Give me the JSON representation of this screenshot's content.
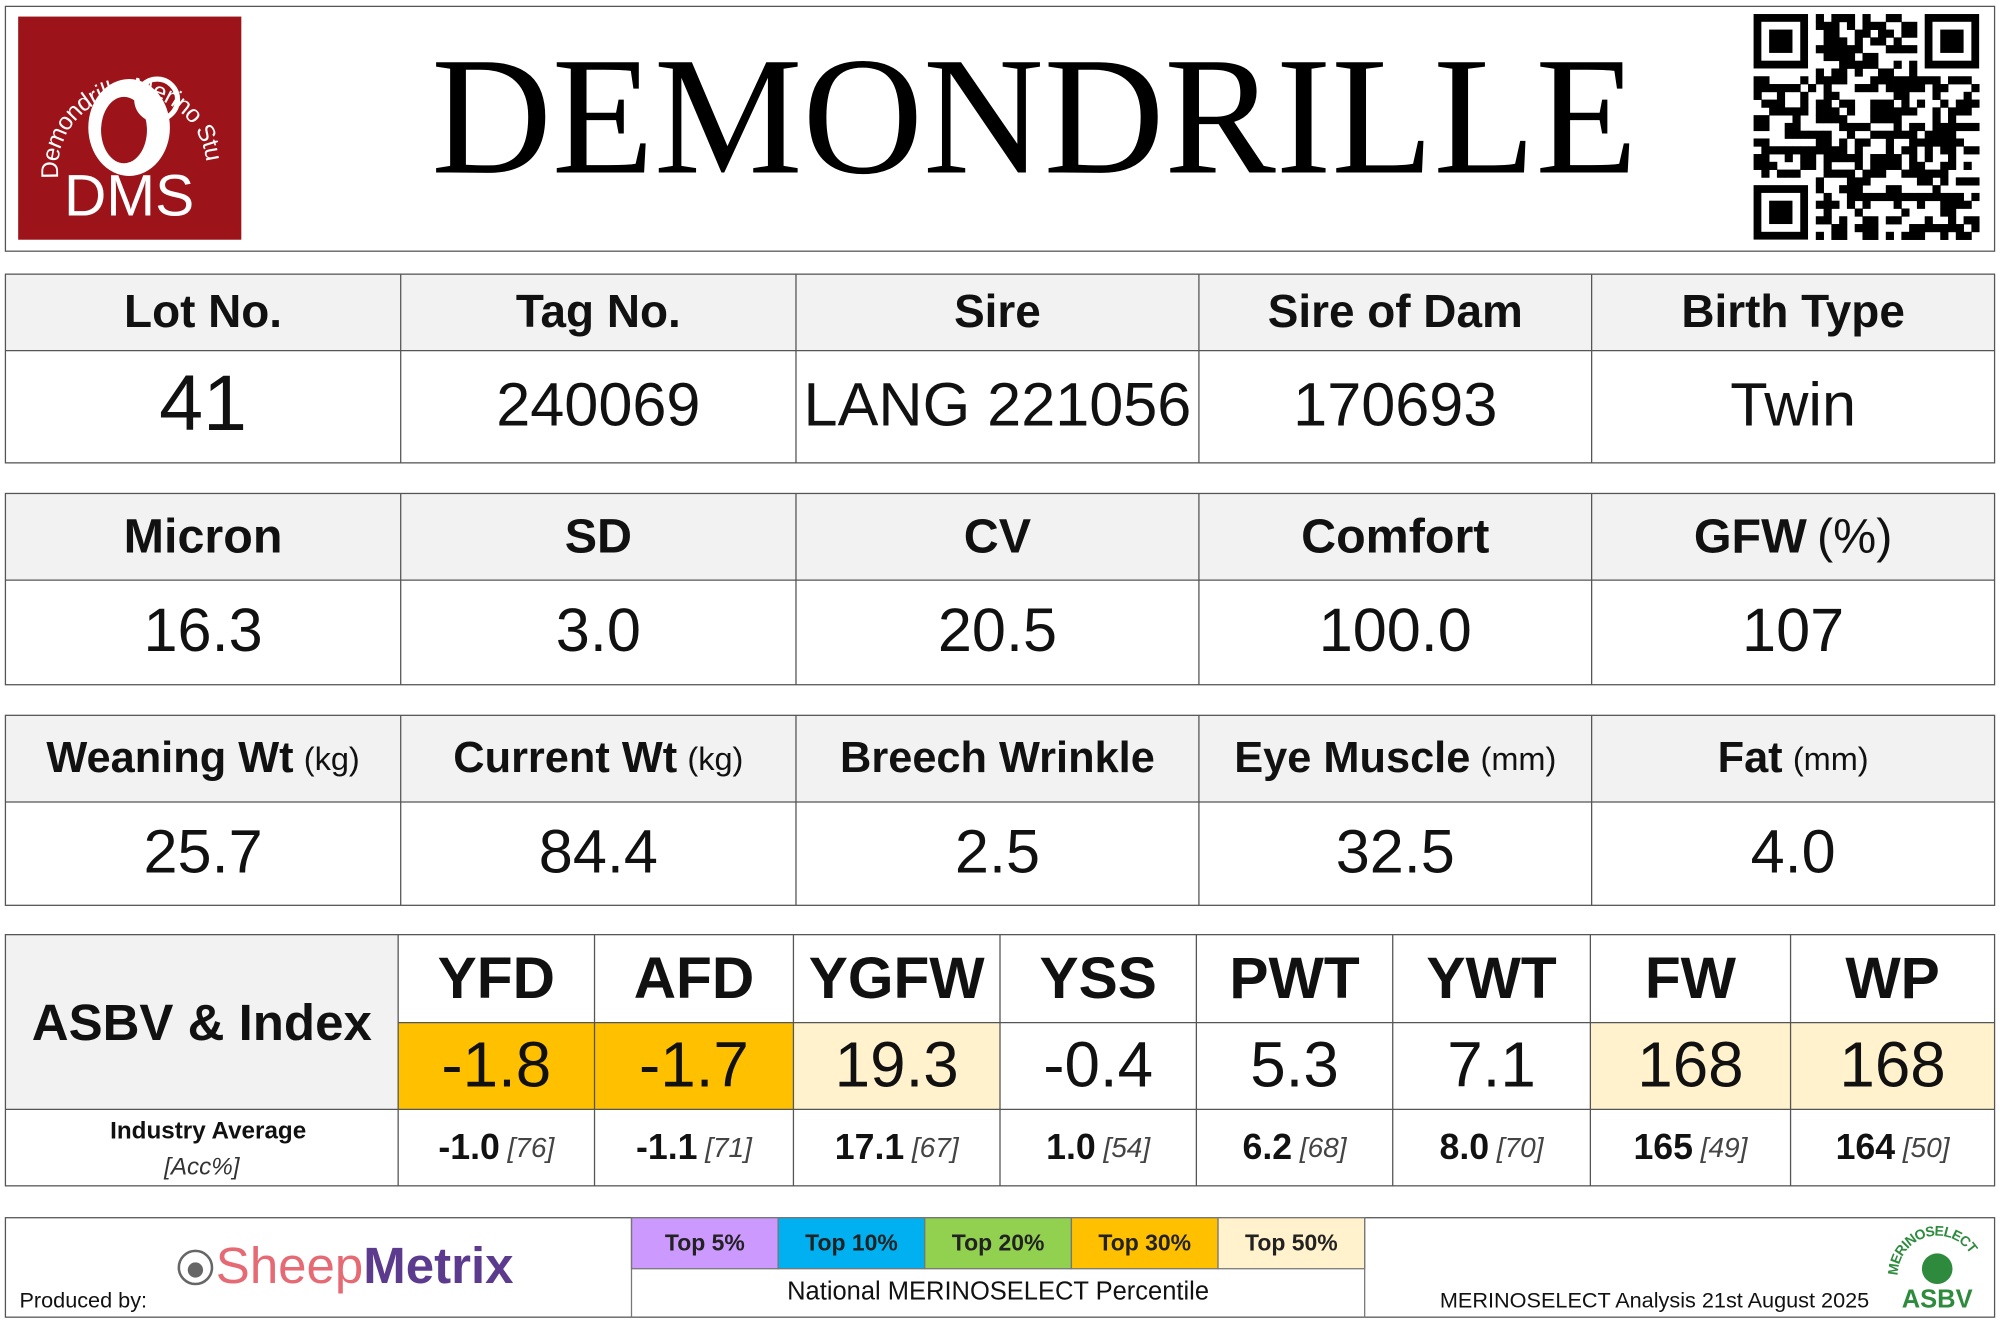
{
  "header": {
    "title": "DEMONDRILLE",
    "logo": {
      "arc_text": "Demondrille Merino Stud",
      "initials": "DMS"
    }
  },
  "tables": [
    {
      "headers": [
        {
          "label": "Lot No."
        },
        {
          "label": "Tag No."
        },
        {
          "label": "Sire"
        },
        {
          "label": "Sire of Dam"
        },
        {
          "label": "Birth Type"
        }
      ],
      "values": [
        "41",
        "240069",
        "LANG 221056",
        "170693",
        "Twin"
      ]
    },
    {
      "headers": [
        {
          "label": "Micron"
        },
        {
          "label": "SD"
        },
        {
          "label": "CV"
        },
        {
          "label": "Comfort"
        },
        {
          "label": "GFW",
          "unit": "(%)"
        }
      ],
      "values": [
        "16.3",
        "3.0",
        "20.5",
        "100.0",
        "107"
      ]
    },
    {
      "headers": [
        {
          "label": "Weaning Wt",
          "unit": "(kg)"
        },
        {
          "label": "Current Wt",
          "unit": "(kg)"
        },
        {
          "label": "Breech Wrinkle"
        },
        {
          "label": "Eye Muscle",
          "unit": "(mm)"
        },
        {
          "label": "Fat",
          "unit": "(mm)"
        }
      ],
      "values": [
        "25.7",
        "84.4",
        "2.5",
        "32.5",
        "4.0"
      ]
    }
  ],
  "asbv": {
    "label": "ASBV & Index",
    "avg_label": "Industry Average",
    "acc_label": "[Acc%]",
    "columns": [
      {
        "name": "YFD",
        "value": "-1.8",
        "fill": "#ffc000",
        "avg": "-1.0",
        "acc": "[76]"
      },
      {
        "name": "AFD",
        "value": "-1.7",
        "fill": "#ffc000",
        "avg": "-1.1",
        "acc": "[71]"
      },
      {
        "name": "YGFW",
        "value": "19.3",
        "fill": "#fff2cc",
        "avg": "17.1",
        "acc": "[67]"
      },
      {
        "name": "YSS",
        "value": "-0.4",
        "fill": "#ffffff",
        "avg": "1.0",
        "acc": "[54]"
      },
      {
        "name": "PWT",
        "value": "5.3",
        "fill": "#ffffff",
        "avg": "6.2",
        "acc": "[68]"
      },
      {
        "name": "YWT",
        "value": "7.1",
        "fill": "#ffffff",
        "avg": "8.0",
        "acc": "[70]"
      },
      {
        "name": "FW",
        "value": "168",
        "fill": "#fff2cc",
        "avg": "165",
        "acc": "[49]"
      },
      {
        "name": "WP",
        "value": "168",
        "fill": "#fff2cc",
        "avg": "164",
        "acc": "[50]"
      }
    ]
  },
  "footer": {
    "produced_by": "Produced by:",
    "brand": {
      "part1": "Sheep",
      "part2": "Metrix"
    },
    "legend": [
      {
        "label": "Top 5%",
        "color": "#cc99ff"
      },
      {
        "label": "Top 10%",
        "color": "#00b0f0"
      },
      {
        "label": "Top 20%",
        "color": "#92d050"
      },
      {
        "label": "Top 30%",
        "color": "#ffc000"
      },
      {
        "label": "Top 50%",
        "color": "#fff2cc"
      }
    ],
    "legend_caption": "National MERINOSELECT Percentile",
    "analysis": "MERINOSELECT Analysis 21st August 2025",
    "badge": {
      "arc_text": "MERINOSELECT",
      "label": "ASBV"
    }
  }
}
